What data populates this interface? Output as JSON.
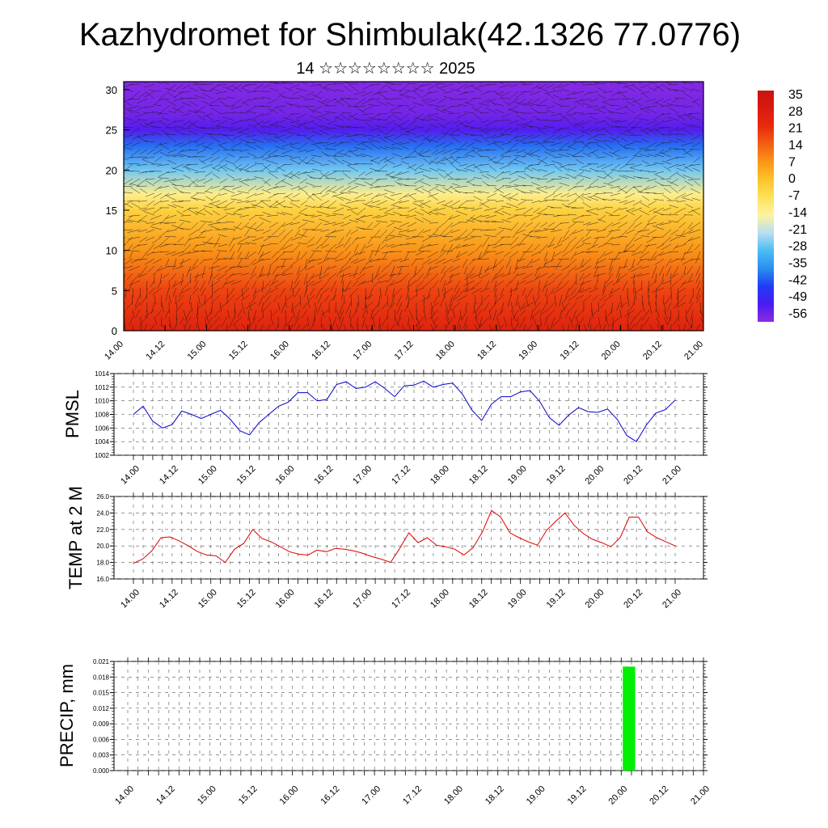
{
  "title": "Kazhydromet for Shimbulak(42.1326 77.0776)",
  "subtitle": "14 ☆☆☆☆☆☆☆☆ 2025",
  "x_ticks": [
    "14.00",
    "14.12",
    "15.00",
    "15.12",
    "16.00",
    "16.12",
    "17.00",
    "17.12",
    "18.00",
    "18.12",
    "19.00",
    "19.12",
    "20.00",
    "20.12",
    "21.00"
  ],
  "colors": {
    "pmsl_line": "#0000cc",
    "temp_line": "#dd0000",
    "precip_bar": "#00ee00",
    "colormap": [
      "#8d2be3",
      "#4a1bf0",
      "#1f3cf5",
      "#2a8ff0",
      "#4bbcf2",
      "#b9def2",
      "#fdf3a2",
      "#fde25a",
      "#fdc32a",
      "#fa9617",
      "#f45e12",
      "#e82a0e",
      "#d91a0e",
      "#c81410"
    ]
  },
  "chart_data": [
    {
      "type": "heatmap",
      "name": "temperature-wind-profile",
      "x": [
        "14.00",
        "14.12",
        "15.00",
        "15.12",
        "16.00",
        "16.12",
        "17.00",
        "17.12",
        "18.00",
        "18.12",
        "19.00",
        "19.12",
        "20.00",
        "20.12",
        "21.00"
      ],
      "ylim": [
        0,
        31
      ],
      "y_ticks": [
        "0",
        "5",
        "10",
        "15",
        "20",
        "25",
        "30"
      ],
      "colorbar": {
        "labels": [
          "35",
          "28",
          "21",
          "14",
          "7",
          "0",
          "-7",
          "-14",
          "-21",
          "-28",
          "-35",
          "-42",
          "-49",
          "-56"
        ],
        "range": [
          -63,
          42
        ]
      },
      "temperature_by_level": [
        {
          "y": 0,
          "value": 30
        },
        {
          "y": 5,
          "value": 22
        },
        {
          "y": 10,
          "value": 10
        },
        {
          "y": 15,
          "value": -2
        },
        {
          "y": 17,
          "value": -12
        },
        {
          "y": 20,
          "value": -28
        },
        {
          "y": 23,
          "value": -42
        },
        {
          "y": 25,
          "value": -56
        },
        {
          "y": 27,
          "value": -60
        },
        {
          "y": 31,
          "value": -62
        }
      ],
      "wind_barbs": true
    },
    {
      "type": "line",
      "name": "pmsl",
      "ylabel": "PMSL",
      "ylim": [
        1002,
        1014
      ],
      "y_ticks": [
        "1014",
        "1012",
        "1010",
        "1008",
        "1006",
        "1004",
        "1002"
      ],
      "values": [
        1008,
        1009.2,
        1007,
        1006,
        1006.5,
        1008.5,
        1008,
        1007.4,
        1008,
        1008.6,
        1007.3,
        1005.6,
        1005,
        1006.8,
        1008,
        1009.2,
        1009.8,
        1011.2,
        1011.2,
        1010,
        1010.2,
        1012.4,
        1012.8,
        1011.8,
        1012,
        1012.8,
        1011.8,
        1010.6,
        1012.2,
        1012.3,
        1012.9,
        1012,
        1012.4,
        1012.6,
        1011,
        1008.6,
        1007.1,
        1009.5,
        1010.6,
        1010.6,
        1011.3,
        1011.5,
        1009.9,
        1007.5,
        1006.4,
        1007.9,
        1009,
        1008.4,
        1008.3,
        1008.8,
        1007.3,
        1004.9,
        1004,
        1006.4,
        1008.2,
        1008.7,
        1010.1
      ]
    },
    {
      "type": "line",
      "name": "temp-2m",
      "ylabel": "TEMP at 2 M",
      "ylim": [
        16,
        26
      ],
      "y_ticks": [
        "26.0",
        "24.0",
        "22.0",
        "20.0",
        "18.0",
        "16.0"
      ],
      "values": [
        17.9,
        18.4,
        19.4,
        21,
        21.1,
        20.6,
        20,
        19.3,
        18.9,
        18.8,
        18,
        19.6,
        20.3,
        22,
        20.9,
        20.5,
        19.9,
        19.3,
        19,
        18.9,
        19.5,
        19.3,
        19.7,
        19.6,
        19.4,
        19.1,
        18.7,
        18.4,
        18,
        19.7,
        21.6,
        20.4,
        21,
        20.1,
        19.9,
        19.6,
        18.9,
        19.8,
        21.7,
        24.3,
        23.5,
        21.6,
        21,
        20.5,
        20.1,
        21.9,
        23,
        24,
        22.5,
        21.5,
        20.8,
        20.4,
        19.9,
        21,
        23.5,
        23.5,
        21.7,
        21,
        20.5,
        20
      ]
    },
    {
      "type": "bar",
      "name": "precip",
      "ylabel": "PRECIP, mm",
      "ylim": [
        0,
        0.021
      ],
      "y_ticks": [
        "0.021",
        "0.018",
        "0.015",
        "0.012",
        "0.009",
        "0.006",
        "0.003",
        "0.000"
      ],
      "bars": [
        {
          "x_index": 48.75,
          "width": 1.2,
          "value": 0.02
        }
      ]
    }
  ]
}
